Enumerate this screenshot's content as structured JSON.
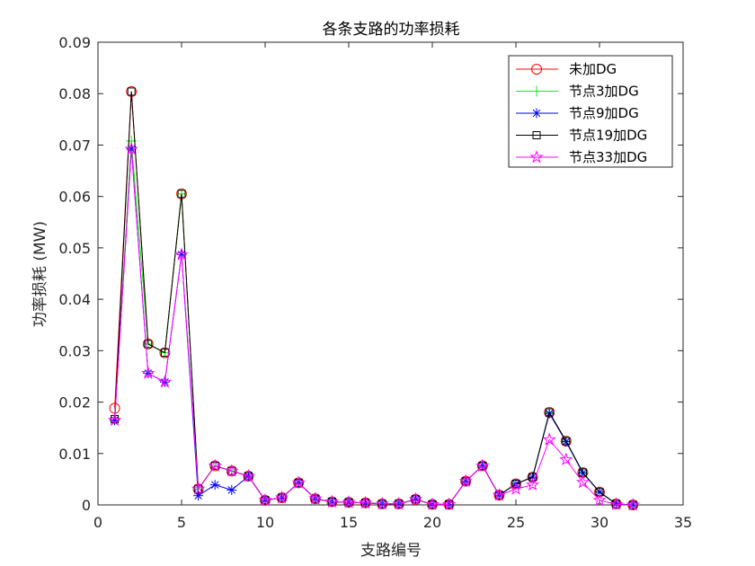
{
  "chart_data": {
    "type": "line",
    "title": "各条支路的功率损耗",
    "xlabel": "支路编号",
    "ylabel": "功率损耗 (MW)",
    "xlim": [
      0,
      35
    ],
    "ylim": [
      0,
      0.09
    ],
    "xticks": [
      0,
      5,
      10,
      15,
      20,
      25,
      30,
      35
    ],
    "yticks": [
      0,
      0.01,
      0.02,
      0.03,
      0.04,
      0.05,
      0.06,
      0.07,
      0.08,
      0.09
    ],
    "xtick_labels": [
      "0",
      "5",
      "10",
      "15",
      "20",
      "25",
      "30",
      "35"
    ],
    "ytick_labels": [
      "0",
      "0.01",
      "0.02",
      "0.03",
      "0.04",
      "0.05",
      "0.06",
      "0.07",
      "0.08",
      "0.09"
    ],
    "grid": false,
    "legend_position": "top-right",
    "x": [
      1,
      2,
      3,
      4,
      5,
      6,
      7,
      8,
      9,
      10,
      11,
      12,
      13,
      14,
      15,
      16,
      17,
      18,
      19,
      20,
      21,
      22,
      23,
      24,
      25,
      26,
      27,
      28,
      29,
      30,
      31,
      32
    ],
    "series": [
      {
        "name": "未加DG",
        "color": "#ff0000",
        "marker": "circle",
        "values": [
          0.0188,
          0.0804,
          0.0313,
          0.0296,
          0.0605,
          0.0031,
          0.0076,
          0.0066,
          0.0056,
          0.0009,
          0.0014,
          0.0043,
          0.0012,
          0.0006,
          0.0005,
          0.0004,
          0.0002,
          0.0002,
          0.0011,
          0.0001,
          0.0001,
          0.0046,
          0.0076,
          0.0019,
          0.0041,
          0.0054,
          0.018,
          0.0124,
          0.0063,
          0.0025,
          0.0002,
          0.0
        ]
      },
      {
        "name": "节点3加DG",
        "color": "#00ff00",
        "marker": "plus",
        "values": [
          0.0165,
          0.0708,
          0.0313,
          0.0296,
          0.0605,
          0.0031,
          0.0076,
          0.0066,
          0.0056,
          0.0009,
          0.0014,
          0.0043,
          0.0012,
          0.0006,
          0.0005,
          0.0004,
          0.0002,
          0.0002,
          0.0011,
          0.0001,
          0.0001,
          0.0046,
          0.0076,
          0.0019,
          0.0041,
          0.0054,
          0.018,
          0.0124,
          0.0063,
          0.0025,
          0.0002,
          0.0
        ]
      },
      {
        "name": "节点9加DG",
        "color": "#0000ff",
        "marker": "asterisk",
        "values": [
          0.0165,
          0.0692,
          0.0256,
          0.0239,
          0.0487,
          0.0018,
          0.0039,
          0.0029,
          0.0056,
          0.0009,
          0.0014,
          0.0043,
          0.0012,
          0.0006,
          0.0005,
          0.0004,
          0.0002,
          0.0002,
          0.0011,
          0.0001,
          0.0001,
          0.0046,
          0.0076,
          0.0019,
          0.0041,
          0.0054,
          0.0178,
          0.0123,
          0.0062,
          0.0025,
          0.0002,
          0.0
        ]
      },
      {
        "name": "节点19加DG",
        "color": "#000000",
        "marker": "square",
        "values": [
          0.0167,
          0.0804,
          0.0313,
          0.0296,
          0.0605,
          0.0031,
          0.0076,
          0.0066,
          0.0056,
          0.0009,
          0.0014,
          0.0043,
          0.0012,
          0.0006,
          0.0005,
          0.0004,
          0.0002,
          0.0002,
          0.0011,
          0.0001,
          0.0001,
          0.0046,
          0.0076,
          0.0019,
          0.0041,
          0.0054,
          0.018,
          0.0124,
          0.0063,
          0.0025,
          0.0002,
          0.0
        ]
      },
      {
        "name": "节点33加DG",
        "color": "#ff00ff",
        "marker": "pentagram",
        "values": [
          0.0165,
          0.0692,
          0.0256,
          0.0239,
          0.0487,
          0.0031,
          0.0076,
          0.0066,
          0.0056,
          0.0009,
          0.0014,
          0.0043,
          0.0012,
          0.0006,
          0.0005,
          0.0004,
          0.0002,
          0.0002,
          0.0011,
          0.0001,
          0.0001,
          0.0046,
          0.0076,
          0.0019,
          0.0031,
          0.0039,
          0.0127,
          0.0088,
          0.0044,
          0.0009,
          0.0001,
          0.0
        ]
      }
    ]
  }
}
